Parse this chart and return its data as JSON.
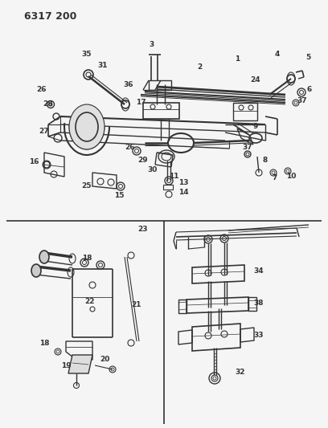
{
  "title": "6317 200",
  "bg_color": "#f5f5f5",
  "line_color": "#333333",
  "title_fontsize": 9,
  "label_fontsize": 6.5,
  "figsize": [
    4.08,
    5.33
  ],
  "dpi": 100
}
